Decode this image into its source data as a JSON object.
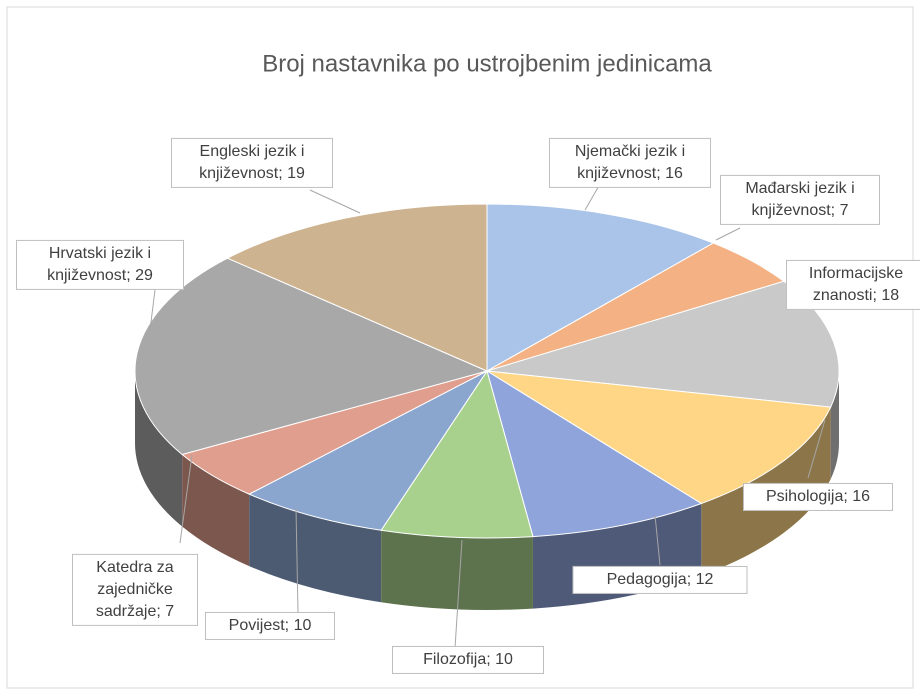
{
  "chart_data": {
    "type": "pie",
    "style": "3d",
    "title": "Broj nastavnika po ustrojbenim jedinicama",
    "categories": [
      "Njemački jezik i književnost",
      "Mađarski jezik i književnost",
      "Informacijske znanosti",
      "Psihologija",
      "Pedagogija",
      "Filozofija",
      "Povijest",
      "Katedra za zajedničke sadržaje",
      "Hrvatski jezik i književnost",
      "Engleski jezik i književnost"
    ],
    "values": [
      16,
      7,
      18,
      16,
      12,
      10,
      10,
      7,
      29,
      19
    ],
    "colors": [
      "#a9c4e8",
      "#f4b183",
      "#c9c9c9",
      "#ffd685",
      "#8fa4db",
      "#a9d18e",
      "#8aa6cf",
      "#e09e8e",
      "#a8a8a8",
      "#cdb38f"
    ],
    "label_separator": "; "
  }
}
